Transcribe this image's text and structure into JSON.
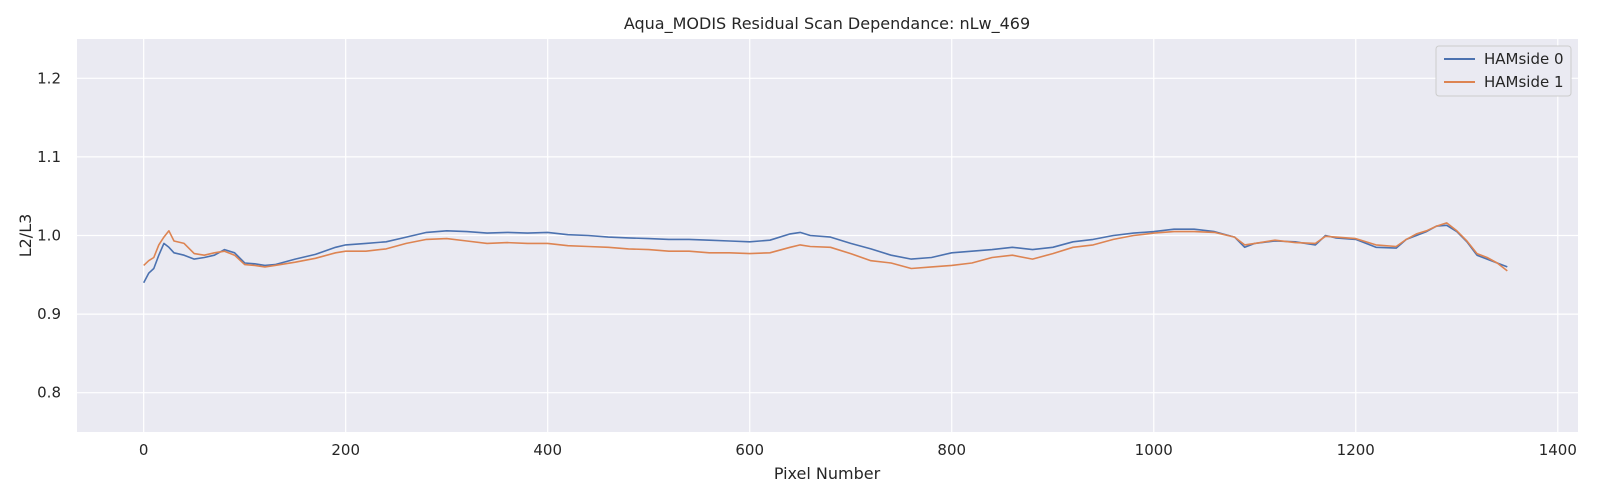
{
  "chart_data": {
    "type": "line",
    "title": "Aqua_MODIS Residual Scan Dependance: nLw_469",
    "xlabel": "Pixel Number",
    "ylabel": "L2/L3",
    "xlim": [
      -66,
      1420
    ],
    "ylim": [
      0.75,
      1.25
    ],
    "xticks": [
      0,
      200,
      400,
      600,
      800,
      1000,
      1200,
      1400
    ],
    "yticks": [
      0.8,
      0.9,
      1.0,
      1.1,
      1.2
    ],
    "grid": true,
    "legend_position": "top-right",
    "background": "#eaeaf2",
    "series": [
      {
        "name": "HAMside 0",
        "color": "#4c72b0",
        "x": [
          0,
          5,
          10,
          15,
          20,
          25,
          30,
          40,
          50,
          60,
          70,
          80,
          90,
          100,
          110,
          120,
          130,
          150,
          170,
          190,
          200,
          220,
          240,
          260,
          280,
          300,
          320,
          340,
          360,
          380,
          400,
          420,
          440,
          460,
          480,
          500,
          520,
          540,
          560,
          580,
          600,
          620,
          640,
          650,
          660,
          680,
          700,
          720,
          740,
          760,
          780,
          800,
          820,
          840,
          860,
          880,
          900,
          920,
          940,
          960,
          980,
          1000,
          1020,
          1040,
          1060,
          1080,
          1090,
          1100,
          1120,
          1140,
          1160,
          1170,
          1180,
          1200,
          1220,
          1240,
          1250,
          1260,
          1270,
          1280,
          1290,
          1300,
          1310,
          1320,
          1330,
          1340,
          1350
        ],
        "values": [
          0.94,
          0.952,
          0.958,
          0.975,
          0.99,
          0.985,
          0.978,
          0.975,
          0.97,
          0.972,
          0.975,
          0.982,
          0.978,
          0.965,
          0.964,
          0.962,
          0.963,
          0.97,
          0.976,
          0.985,
          0.988,
          0.99,
          0.992,
          0.998,
          1.004,
          1.006,
          1.005,
          1.003,
          1.004,
          1.003,
          1.004,
          1.001,
          1.0,
          0.998,
          0.997,
          0.996,
          0.995,
          0.995,
          0.994,
          0.993,
          0.992,
          0.994,
          1.002,
          1.004,
          1.0,
          0.998,
          0.99,
          0.983,
          0.975,
          0.97,
          0.972,
          0.978,
          0.98,
          0.982,
          0.985,
          0.982,
          0.985,
          0.992,
          0.995,
          1.0,
          1.003,
          1.005,
          1.008,
          1.008,
          1.005,
          0.998,
          0.985,
          0.99,
          0.993,
          0.992,
          0.988,
          1.0,
          0.997,
          0.995,
          0.985,
          0.984,
          0.995,
          1.0,
          1.005,
          1.012,
          1.013,
          1.005,
          0.992,
          0.975,
          0.97,
          0.965,
          0.96
        ]
      },
      {
        "name": "HAMside 1",
        "color": "#dd8452",
        "x": [
          0,
          5,
          10,
          15,
          20,
          25,
          30,
          40,
          50,
          60,
          70,
          80,
          90,
          100,
          110,
          120,
          130,
          150,
          170,
          190,
          200,
          220,
          240,
          260,
          280,
          300,
          320,
          340,
          360,
          380,
          400,
          420,
          440,
          460,
          480,
          500,
          520,
          540,
          560,
          580,
          600,
          620,
          640,
          650,
          660,
          680,
          700,
          720,
          740,
          760,
          780,
          800,
          820,
          840,
          860,
          880,
          900,
          920,
          940,
          960,
          980,
          1000,
          1020,
          1040,
          1060,
          1080,
          1090,
          1100,
          1120,
          1140,
          1160,
          1170,
          1180,
          1200,
          1220,
          1240,
          1250,
          1260,
          1270,
          1280,
          1290,
          1300,
          1310,
          1320,
          1330,
          1340,
          1350
        ],
        "values": [
          0.962,
          0.968,
          0.972,
          0.988,
          0.998,
          1.006,
          0.993,
          0.99,
          0.977,
          0.975,
          0.978,
          0.98,
          0.975,
          0.963,
          0.962,
          0.96,
          0.962,
          0.966,
          0.971,
          0.978,
          0.98,
          0.98,
          0.983,
          0.99,
          0.995,
          0.996,
          0.993,
          0.99,
          0.991,
          0.99,
          0.99,
          0.987,
          0.986,
          0.985,
          0.983,
          0.982,
          0.98,
          0.98,
          0.978,
          0.978,
          0.977,
          0.978,
          0.985,
          0.988,
          0.986,
          0.985,
          0.977,
          0.968,
          0.965,
          0.958,
          0.96,
          0.962,
          0.965,
          0.972,
          0.975,
          0.97,
          0.977,
          0.985,
          0.988,
          0.995,
          1.0,
          1.003,
          1.005,
          1.005,
          1.004,
          0.998,
          0.988,
          0.99,
          0.994,
          0.991,
          0.99,
          0.999,
          0.998,
          0.996,
          0.988,
          0.986,
          0.995,
          1.002,
          1.006,
          1.012,
          1.016,
          1.006,
          0.993,
          0.977,
          0.972,
          0.965,
          0.955
        ]
      }
    ]
  }
}
